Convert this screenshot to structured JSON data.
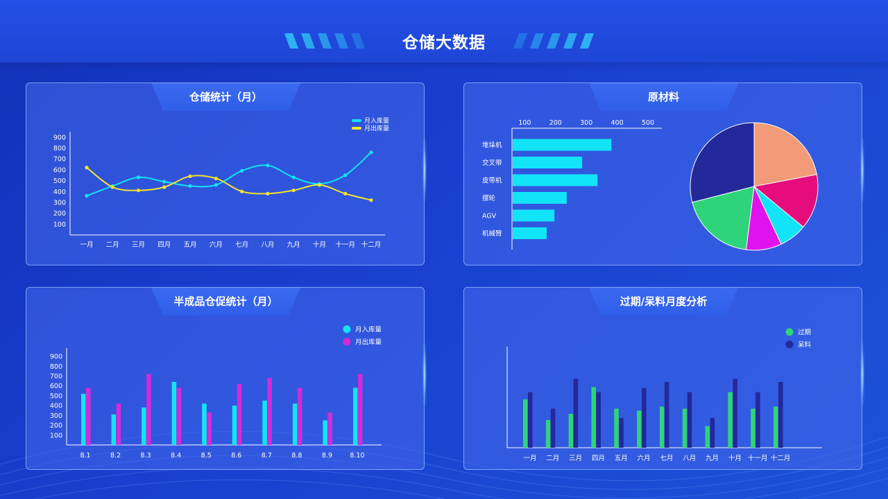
{
  "header": {
    "title": "仓储大数据"
  },
  "colors": {
    "cyan": "#12e4f7",
    "yellow": "#f3e62d",
    "magenta": "#d32bd9",
    "green": "#2fd47a",
    "navy": "#23289a"
  },
  "panels": {
    "storage_stats": {
      "title": "仓储统计（月）"
    },
    "raw_materials": {
      "title": "原材料"
    },
    "semi_finished": {
      "title": "半成品仓促统计（月）"
    },
    "expired": {
      "title": "过期/呆料月度分析"
    }
  },
  "chart_data": [
    {
      "id": "line",
      "type": "line",
      "categories": [
        "一月",
        "二月",
        "三月",
        "四月",
        "五月",
        "六月",
        "七月",
        "八月",
        "九月",
        "十月",
        "十一月",
        "十二月"
      ],
      "yticks": [
        100,
        200,
        300,
        400,
        500,
        600,
        700,
        800,
        900
      ],
      "ylim": [
        0,
        950
      ],
      "legend_position": "top-right",
      "series": [
        {
          "name": "月入库量",
          "color": "#12e4f7",
          "values": [
            360,
            450,
            530,
            490,
            450,
            460,
            590,
            640,
            530,
            470,
            550,
            760
          ]
        },
        {
          "name": "月出库量",
          "color": "#f3e62d",
          "values": [
            620,
            440,
            410,
            440,
            540,
            520,
            400,
            380,
            410,
            460,
            380,
            320
          ]
        }
      ]
    },
    {
      "id": "hbar",
      "type": "bar",
      "orientation": "horizontal",
      "categories": [
        "堆垛机",
        "交叉带",
        "皮带机",
        "摆轮",
        "AGV",
        "机械臂"
      ],
      "values": [
        325,
        230,
        280,
        180,
        140,
        115
      ],
      "xticks": [
        100,
        200,
        300,
        400,
        500
      ],
      "xlim": [
        0,
        500
      ],
      "color": "#12e4f7"
    },
    {
      "id": "pie",
      "type": "pie",
      "values": [
        22,
        14,
        7,
        9,
        19,
        29
      ],
      "colors": [
        "#f39a78",
        "#e60c7c",
        "#12e4f7",
        "#e012ee",
        "#2fd47a",
        "#23289a"
      ]
    },
    {
      "id": "bar1",
      "type": "bar",
      "categories": [
        "8.1",
        "8.2",
        "8.3",
        "8.4",
        "8.5",
        "8.6",
        "8.7",
        "8.8",
        "8.9",
        "8.10"
      ],
      "yticks": [
        100,
        200,
        300,
        400,
        500,
        600,
        700,
        800,
        900
      ],
      "ylim": [
        0,
        950
      ],
      "legend_position": "top-right",
      "series": [
        {
          "name": "月入库量",
          "color": "#12e4f7",
          "values": [
            520,
            310,
            380,
            640,
            420,
            400,
            450,
            420,
            250,
            580
          ]
        },
        {
          "name": "月出库量",
          "color": "#d32bd9",
          "values": [
            580,
            420,
            720,
            580,
            330,
            620,
            680,
            580,
            330,
            720
          ]
        }
      ]
    },
    {
      "id": "bar2",
      "type": "bar",
      "categories": [
        "一月",
        "二月",
        "三月",
        "四月",
        "五月",
        "六月",
        "七月",
        "八月",
        "九月",
        "十月",
        "十一月",
        "十二月"
      ],
      "ylim": [
        0,
        950
      ],
      "legend_position": "top-right",
      "series": [
        {
          "name": "过期",
          "color": "#2fd47a",
          "values": [
            470,
            270,
            330,
            590,
            380,
            360,
            400,
            380,
            210,
            540,
            380,
            400
          ]
        },
        {
          "name": "呆料",
          "color": "#23289a",
          "values": [
            540,
            380,
            670,
            540,
            290,
            580,
            640,
            540,
            290,
            670,
            540,
            640
          ]
        }
      ]
    }
  ]
}
